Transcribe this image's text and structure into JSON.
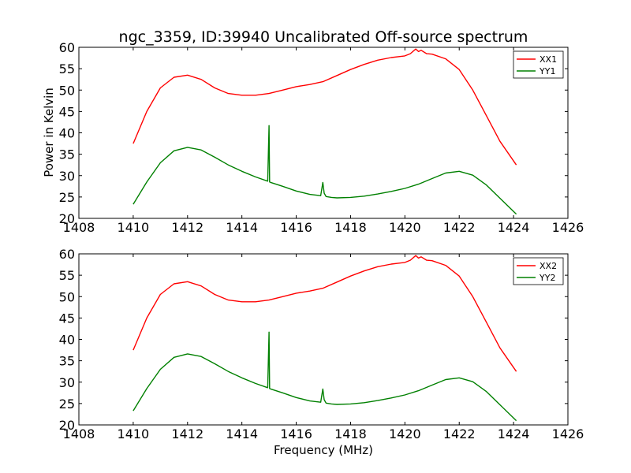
{
  "figure": {
    "title": "ngc_3359, ID:39940 Uncalibrated Off-source spectrum",
    "ylabel": "Power in Kelvin",
    "xlabel": "Frequency (MHz)"
  },
  "chart_data": [
    {
      "type": "line",
      "title": "ngc_3359, ID:39940 Uncalibrated Off-source spectrum",
      "xlabel": "",
      "ylabel": "Power in Kelvin",
      "xlim": [
        1408,
        1426
      ],
      "ylim": [
        20,
        60
      ],
      "xticks": [
        1408,
        1410,
        1412,
        1414,
        1416,
        1418,
        1420,
        1422,
        1424,
        1426
      ],
      "yticks": [
        20,
        25,
        30,
        35,
        40,
        45,
        50,
        55,
        60
      ],
      "grid": false,
      "legend": "top-right",
      "series": [
        {
          "name": "XX1",
          "color": "#ff0000",
          "x": [
            1410.0,
            1410.5,
            1411.0,
            1411.5,
            1412.0,
            1412.5,
            1413.0,
            1413.5,
            1414.0,
            1414.5,
            1415.0,
            1415.5,
            1416.0,
            1416.5,
            1417.0,
            1417.5,
            1418.0,
            1418.5,
            1419.0,
            1419.5,
            1420.0,
            1420.2,
            1420.4,
            1420.5,
            1420.6,
            1420.8,
            1421.0,
            1421.5,
            1422.0,
            1422.5,
            1423.0,
            1423.5,
            1424.1
          ],
          "y": [
            37.5,
            45.0,
            50.5,
            53.0,
            53.5,
            52.5,
            50.5,
            49.2,
            48.8,
            48.8,
            49.2,
            50.0,
            50.8,
            51.3,
            52.0,
            53.4,
            54.8,
            56.0,
            57.0,
            57.6,
            58.0,
            58.5,
            59.6,
            59.0,
            59.3,
            58.5,
            58.4,
            57.3,
            54.8,
            50.0,
            44.0,
            38.0,
            32.5
          ]
        },
        {
          "name": "YY1",
          "color": "#008000",
          "x": [
            1410.0,
            1410.5,
            1411.0,
            1411.5,
            1412.0,
            1412.5,
            1413.0,
            1413.5,
            1414.0,
            1414.5,
            1414.95,
            1415.0,
            1415.02,
            1415.06,
            1415.5,
            1416.0,
            1416.5,
            1416.9,
            1416.98,
            1417.03,
            1417.1,
            1417.3,
            1417.5,
            1418.0,
            1418.5,
            1419.0,
            1419.5,
            1420.0,
            1420.5,
            1421.0,
            1421.5,
            1422.0,
            1422.5,
            1423.0,
            1423.5,
            1424.1
          ],
          "y": [
            23.3,
            28.5,
            33.0,
            35.8,
            36.6,
            36.0,
            34.3,
            32.5,
            31.0,
            29.7,
            28.7,
            41.7,
            28.5,
            28.4,
            27.5,
            26.4,
            25.6,
            25.3,
            28.4,
            25.9,
            25.1,
            24.9,
            24.8,
            24.9,
            25.2,
            25.7,
            26.3,
            27.0,
            28.0,
            29.3,
            30.6,
            31.0,
            30.1,
            27.8,
            24.7,
            21.0
          ]
        }
      ]
    },
    {
      "type": "line",
      "title": "",
      "xlabel": "Frequency (MHz)",
      "ylabel": "",
      "xlim": [
        1408,
        1426
      ],
      "ylim": [
        20,
        60
      ],
      "xticks": [
        1408,
        1410,
        1412,
        1414,
        1416,
        1418,
        1420,
        1422,
        1424,
        1426
      ],
      "yticks": [
        20,
        25,
        30,
        35,
        40,
        45,
        50,
        55,
        60
      ],
      "grid": false,
      "legend": "top-right",
      "series": [
        {
          "name": "XX2",
          "color": "#ff0000",
          "x": [
            1410.0,
            1410.5,
            1411.0,
            1411.5,
            1412.0,
            1412.5,
            1413.0,
            1413.5,
            1414.0,
            1414.5,
            1415.0,
            1415.5,
            1416.0,
            1416.5,
            1417.0,
            1417.5,
            1418.0,
            1418.5,
            1419.0,
            1419.5,
            1420.0,
            1420.2,
            1420.4,
            1420.5,
            1420.6,
            1420.8,
            1421.0,
            1421.5,
            1422.0,
            1422.5,
            1423.0,
            1423.5,
            1424.1
          ],
          "y": [
            37.5,
            45.0,
            50.5,
            53.0,
            53.5,
            52.5,
            50.5,
            49.2,
            48.8,
            48.8,
            49.2,
            50.0,
            50.8,
            51.3,
            52.0,
            53.4,
            54.8,
            56.0,
            57.0,
            57.6,
            58.0,
            58.5,
            59.6,
            59.0,
            59.3,
            58.5,
            58.4,
            57.3,
            54.8,
            50.0,
            44.0,
            38.0,
            32.5
          ]
        },
        {
          "name": "YY2",
          "color": "#008000",
          "x": [
            1410.0,
            1410.5,
            1411.0,
            1411.5,
            1412.0,
            1412.5,
            1413.0,
            1413.5,
            1414.0,
            1414.5,
            1414.95,
            1415.0,
            1415.02,
            1415.06,
            1415.5,
            1416.0,
            1416.5,
            1416.9,
            1416.98,
            1417.03,
            1417.1,
            1417.3,
            1417.5,
            1418.0,
            1418.5,
            1419.0,
            1419.5,
            1420.0,
            1420.5,
            1421.0,
            1421.5,
            1422.0,
            1422.5,
            1423.0,
            1423.5,
            1424.1
          ],
          "y": [
            23.3,
            28.5,
            33.0,
            35.8,
            36.6,
            36.0,
            34.3,
            32.5,
            31.0,
            29.7,
            28.7,
            41.7,
            28.5,
            28.4,
            27.5,
            26.4,
            25.6,
            25.3,
            28.4,
            25.9,
            25.1,
            24.9,
            24.8,
            24.9,
            25.2,
            25.7,
            26.3,
            27.0,
            28.0,
            29.3,
            30.6,
            31.0,
            30.1,
            27.8,
            24.7,
            21.0
          ]
        }
      ]
    }
  ]
}
